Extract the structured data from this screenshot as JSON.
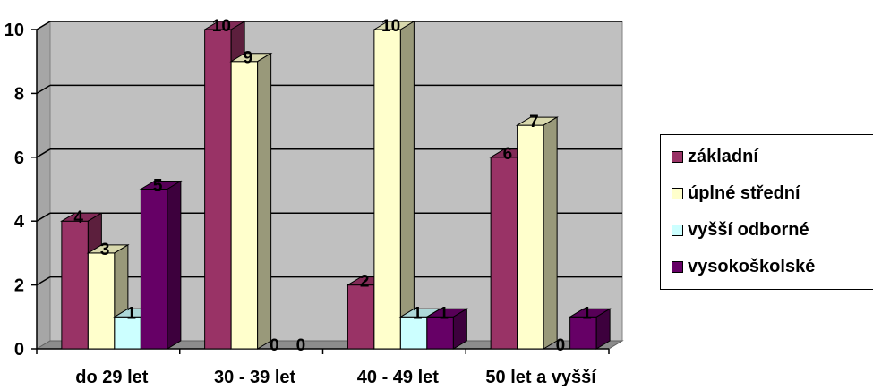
{
  "chart_data": {
    "type": "bar",
    "title": "",
    "xlabel": "",
    "ylabel": "",
    "categories": [
      "do 29 let",
      "30 - 39 let",
      "40 - 49 let",
      "50 let a vyšší"
    ],
    "ylim": [
      0,
      10
    ],
    "yticks": [
      "0",
      "2",
      "4",
      "6",
      "8",
      "10"
    ],
    "grid": true,
    "legend_position": "right",
    "series": [
      {
        "name": "základní",
        "values": [
          4,
          10,
          2,
          6
        ],
        "color": "#993366"
      },
      {
        "name": "úplné střední",
        "values": [
          3,
          9,
          10,
          7
        ],
        "color": "#FFFFCC"
      },
      {
        "name": "vyšší odborné",
        "values": [
          1,
          0,
          1,
          0
        ],
        "color": "#CCFFFF"
      },
      {
        "name": "vysokoškolské",
        "values": [
          5,
          0,
          1,
          1
        ],
        "color": "#660066"
      }
    ],
    "plot_background": "#C0C0C0"
  }
}
